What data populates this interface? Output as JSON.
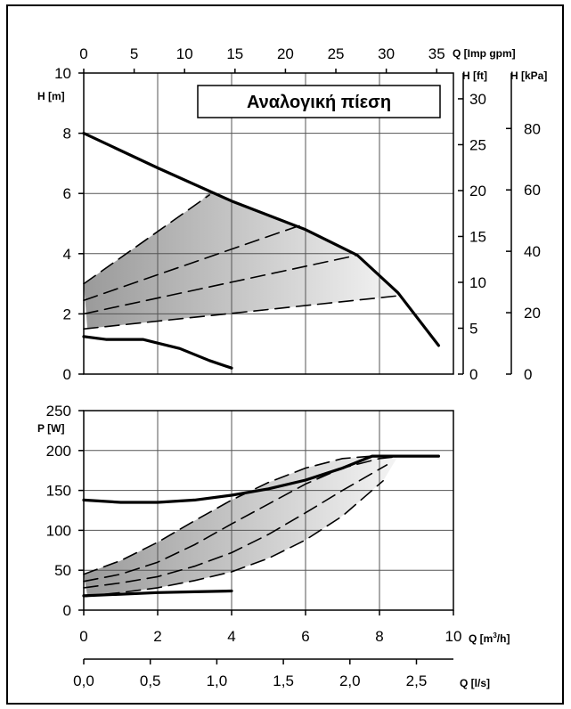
{
  "chart_data": [
    {
      "type": "line",
      "panel": "head",
      "title_box": "Αναλογική πίεση",
      "x_unit": "Q [m³/h]",
      "x_range": [
        0,
        10
      ],
      "y_unit": "H [m]",
      "y_range": [
        0,
        10
      ],
      "y_ticks": [
        0,
        2,
        4,
        6,
        8,
        10
      ],
      "secondary_axes": {
        "top": {
          "unit": "Q [Imp gpm]",
          "ticks": [
            "0",
            "5",
            "10",
            "15",
            "20",
            "25",
            "30",
            "35"
          ]
        },
        "right_ft": {
          "unit": "H [ft]",
          "ticks": [
            "0",
            "5",
            "10",
            "15",
            "20",
            "25",
            "30"
          ]
        },
        "right_kpa": {
          "unit": "H [kPa]",
          "ticks": [
            "0",
            "20",
            "40",
            "60",
            "80"
          ]
        }
      },
      "grid": true,
      "series": [
        {
          "style": "solid",
          "x": [
            0,
            2,
            4,
            6,
            7.4,
            8.5,
            9.6
          ],
          "y": [
            8.0,
            6.85,
            5.75,
            4.8,
            3.95,
            2.7,
            0.95
          ]
        },
        {
          "style": "solid",
          "x": [
            0,
            0.6,
            1.6,
            2.6,
            3.4,
            4.0
          ],
          "y": [
            1.25,
            1.15,
            1.15,
            0.85,
            0.45,
            0.2
          ]
        },
        {
          "style": "dashed",
          "x": [
            0,
            3.4
          ],
          "y": [
            3.0,
            5.95
          ]
        },
        {
          "style": "dashed",
          "x": [
            0,
            6.0
          ],
          "y": [
            2.45,
            5.0
          ]
        },
        {
          "style": "dashed",
          "x": [
            0,
            7.4
          ],
          "y": [
            2.0,
            3.95
          ]
        },
        {
          "style": "dashed",
          "x": [
            0,
            8.5
          ],
          "y": [
            1.5,
            2.6
          ]
        }
      ]
    },
    {
      "type": "line",
      "panel": "power",
      "y_unit": "P [W]",
      "y_range": [
        0,
        250
      ],
      "y_ticks": [
        0,
        50,
        100,
        150,
        200,
        250
      ],
      "x_unit": "Q [m³/h]",
      "x_range": [
        0,
        10
      ],
      "x_ticks": [
        "0",
        "2",
        "4",
        "6",
        "8",
        "10"
      ],
      "secondary_axes": {
        "bottom_ls": {
          "unit": "Q [l/s]",
          "ticks": [
            "0,0",
            "0,5",
            "1,0",
            "1,5",
            "2,0",
            "2,5"
          ]
        }
      },
      "grid": true,
      "series": [
        {
          "style": "solid",
          "x": [
            0,
            1,
            2,
            3,
            4,
            5,
            6,
            7,
            7.8,
            8.5,
            9.6
          ],
          "y": [
            138,
            135,
            135,
            138,
            144,
            152,
            163,
            178,
            193,
            193,
            193
          ]
        },
        {
          "style": "solid",
          "x": [
            0,
            1,
            2,
            3,
            4
          ],
          "y": [
            18,
            20,
            22,
            23,
            24
          ]
        },
        {
          "style": "dashed",
          "x": [
            0,
            1,
            2,
            3,
            4,
            5,
            6,
            7,
            7.8
          ],
          "y": [
            45,
            62,
            85,
            112,
            138,
            160,
            178,
            190,
            193
          ]
        },
        {
          "style": "dashed",
          "x": [
            0,
            1,
            2,
            3,
            4,
            5,
            6,
            7,
            8.0,
            8.6
          ],
          "y": [
            36,
            45,
            60,
            82,
            108,
            133,
            158,
            178,
            190,
            193
          ]
        },
        {
          "style": "dashed",
          "x": [
            0,
            1,
            2,
            3,
            4,
            5,
            6,
            7,
            8.2
          ],
          "y": [
            28,
            34,
            42,
            55,
            72,
            95,
            122,
            150,
            182
          ]
        },
        {
          "style": "dashed",
          "x": [
            0,
            1,
            2,
            3,
            4,
            5,
            6,
            7,
            8.1
          ],
          "y": [
            17,
            22,
            28,
            37,
            48,
            65,
            88,
            118,
            162
          ]
        }
      ]
    }
  ]
}
